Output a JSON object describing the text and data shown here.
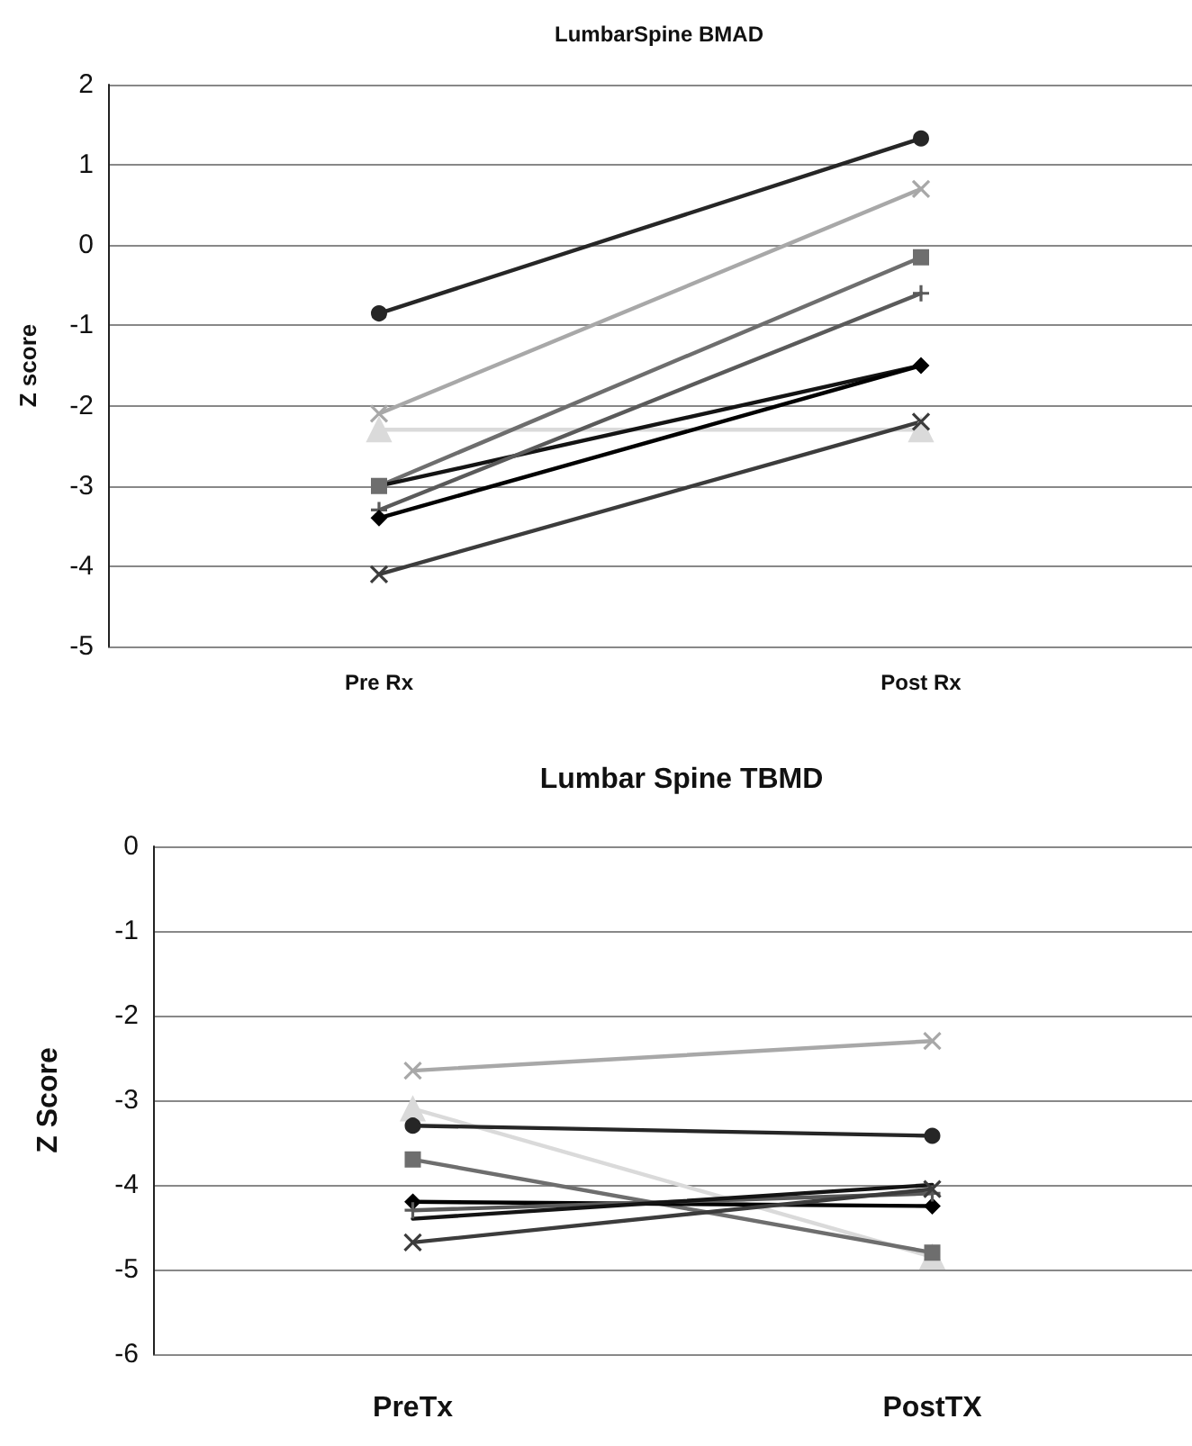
{
  "chart_data": [
    {
      "type": "line",
      "title": "LumbarSpine BMAD",
      "ylabel": "Z score",
      "categories": [
        "Pre Rx",
        "Post Rx"
      ],
      "ylim": [
        -5,
        2
      ],
      "yticks": [
        -5,
        -4,
        -3,
        -2,
        -1,
        0,
        1,
        2
      ],
      "grid": "y",
      "series": [
        {
          "color": "#262626",
          "marker": "circle",
          "values": [
            -0.85,
            1.33
          ]
        },
        {
          "color": "#a8a8a8",
          "marker": "cross",
          "values": [
            -2.1,
            0.7
          ]
        },
        {
          "color": "#dadada",
          "marker": "triangle",
          "values": [
            -2.3,
            -2.3
          ]
        },
        {
          "color": "#6e6e6e",
          "marker": "square",
          "values": [
            -3.0,
            -0.15
          ]
        },
        {
          "color": "#141414",
          "marker": "none",
          "values": [
            -3.0,
            -1.5
          ]
        },
        {
          "color": "#5a5a5a",
          "marker": "plus",
          "values": [
            -3.3,
            -0.6
          ]
        },
        {
          "color": "#000000",
          "marker": "diamond",
          "values": [
            -3.4,
            -1.5
          ]
        },
        {
          "color": "#3c3c3c",
          "marker": "cross",
          "values": [
            -4.1,
            -2.2
          ]
        }
      ]
    },
    {
      "type": "line",
      "title": "Lumbar Spine TBMD",
      "ylabel": "Z Score",
      "categories": [
        "PreTx",
        "PostTX"
      ],
      "ylim": [
        -6,
        0
      ],
      "yticks": [
        -6,
        -5,
        -4,
        -3,
        -2,
        -1,
        0
      ],
      "grid": "y",
      "series": [
        {
          "color": "#a8a8a8",
          "marker": "cross",
          "values": [
            -2.65,
            -2.3
          ]
        },
        {
          "color": "#dadada",
          "marker": "triangle",
          "values": [
            -3.1,
            -4.85
          ]
        },
        {
          "color": "#262626",
          "marker": "circle",
          "values": [
            -3.3,
            -3.42
          ]
        },
        {
          "color": "#6e6e6e",
          "marker": "square",
          "values": [
            -3.7,
            -4.8
          ]
        },
        {
          "color": "#000000",
          "marker": "diamond",
          "values": [
            -4.2,
            -4.25
          ]
        },
        {
          "color": "#5a5a5a",
          "marker": "plus",
          "values": [
            -4.3,
            -4.1
          ]
        },
        {
          "color": "#141414",
          "marker": "none",
          "values": [
            -4.4,
            -4.0
          ]
        },
        {
          "color": "#3c3c3c",
          "marker": "cross",
          "values": [
            -4.68,
            -4.05
          ]
        }
      ]
    }
  ]
}
